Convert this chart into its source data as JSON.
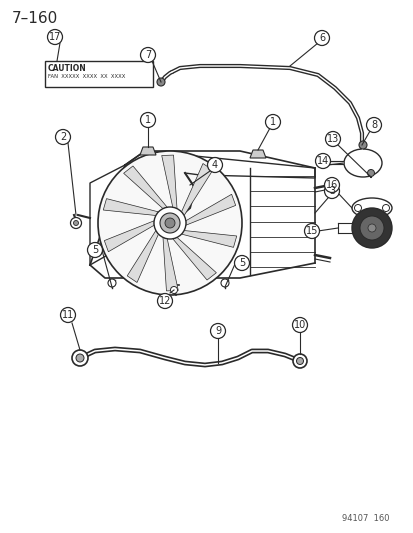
{
  "title": "7–160",
  "background": "#ffffff",
  "fig_width": 4.14,
  "fig_height": 5.33,
  "dpi": 100,
  "watermark": "94107  160",
  "caution_line1": "CAUTION",
  "caution_line2": "FAN  XXXXX  XXXX  XX  XXXX",
  "line_color": "#2a2a2a",
  "callout_r": 7.5
}
